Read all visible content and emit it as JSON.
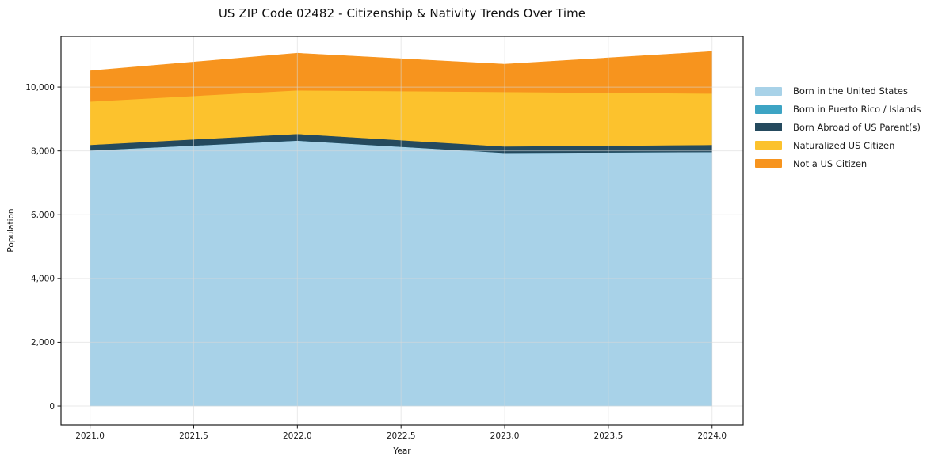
{
  "chart_data": {
    "type": "area",
    "stacked": true,
    "title": "US ZIP Code 02482 - Citizenship & Nativity Trends Over Time",
    "xlabel": "Year",
    "ylabel": "Population",
    "x": [
      2021,
      2022,
      2023,
      2024
    ],
    "series": [
      {
        "name": "Born in the United States",
        "color": "#a8d2e8",
        "values": [
          8015,
          8325,
          7940,
          7965
        ]
      },
      {
        "name": "Born in Puerto Rico / Islands",
        "color": "#3da4c4",
        "values": [
          0,
          0,
          0,
          0
        ]
      },
      {
        "name": "Born Abroad of US Parent(s)",
        "color": "#254a5e",
        "values": [
          175,
          210,
          200,
          225
        ]
      },
      {
        "name": "Naturalized US Citizen",
        "color": "#fcc22d",
        "values": [
          1360,
          1365,
          1710,
          1610
        ]
      },
      {
        "name": "Not a US Citizen",
        "color": "#f7941e",
        "values": [
          960,
          1165,
          870,
          1315
        ]
      }
    ],
    "totals": [
      10510,
      11065,
      10720,
      11115
    ],
    "xlim": [
      2020.86,
      2024.15
    ],
    "ylim": [
      -595,
      11590
    ],
    "xticks": {
      "values": [
        2021,
        2021.5,
        2022,
        2022.5,
        2023,
        2023.5,
        2024
      ],
      "labels": [
        "2021.0",
        "2021.5",
        "2022.0",
        "2022.5",
        "2023.0",
        "2023.5",
        "2024.0"
      ]
    },
    "yticks": {
      "values": [
        0,
        2000,
        4000,
        6000,
        8000,
        10000
      ],
      "labels": [
        "0",
        "2,000",
        "4,000",
        "6,000",
        "8,000",
        "10,000"
      ]
    },
    "grid": true,
    "grid_color": "#d9d9d9",
    "frame_color": "#1a1a1a",
    "legend_position": "right-outside"
  }
}
